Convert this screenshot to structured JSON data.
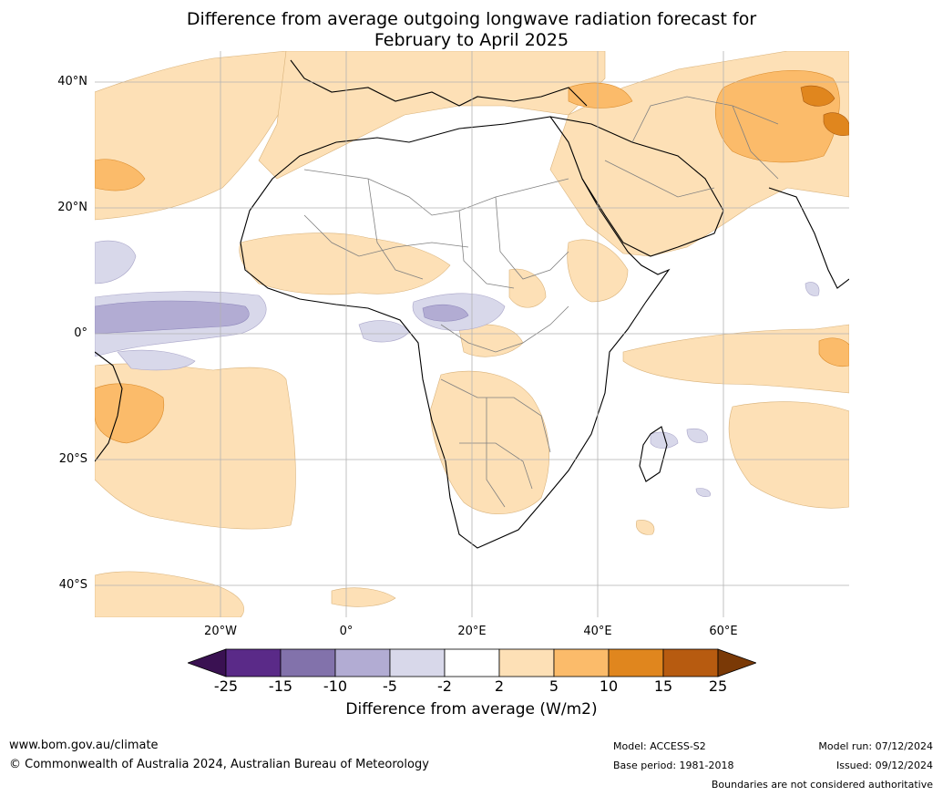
{
  "title": {
    "line1": "Difference from average outgoing longwave radiation forecast for",
    "line2": "February to April 2025"
  },
  "map": {
    "lat_labels": [
      "40°N",
      "20°N",
      "0°",
      "20°S",
      "40°S"
    ],
    "lon_labels": [
      "20°W",
      "0°",
      "20°E",
      "40°E",
      "60°E"
    ],
    "extent": {
      "lon": [
        -40,
        80
      ],
      "lat": [
        -45,
        45
      ]
    }
  },
  "colorbar": {
    "label": "Difference from average (W/m2)",
    "ticks": [
      "-25",
      "-15",
      "-10",
      "-5",
      "-2",
      "2",
      "5",
      "10",
      "15",
      "25"
    ],
    "colors": [
      "#3a1152",
      "#5a2a88",
      "#8272ab",
      "#b2acd3",
      "#d8d8ea",
      "#ffffff",
      "#fde0b6",
      "#fbbb6a",
      "#e0861e",
      "#b75b10",
      "#7a3906"
    ]
  },
  "footer": {
    "website": "www.bom.gov.au/climate",
    "copyright": "© Commonwealth of Australia 2024, Australian Bureau of Meteorology",
    "model": "Model: ACCESS-S2",
    "base_period": "Base period: 1981-2018",
    "model_run": "Model run: 07/12/2024",
    "issued": "Issued: 09/12/2024",
    "disclaimer": "Boundaries are not considered authoritative"
  }
}
